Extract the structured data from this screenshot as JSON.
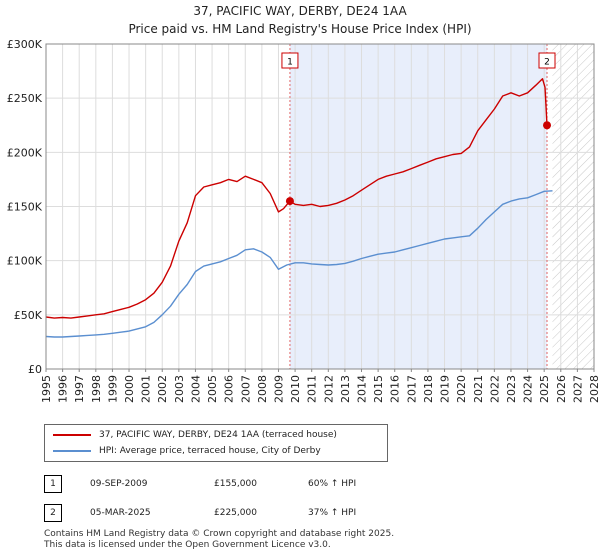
{
  "chart_data": {
    "type": "line",
    "title": "37, PACIFIC WAY, DERBY, DE24 1AA",
    "subtitle": "Price paid vs. HM Land Registry's House Price Index (HPI)",
    "xlim": [
      1995,
      2028
    ],
    "ylim": [
      0,
      300000
    ],
    "x_ticks": [
      "1995",
      "1996",
      "1997",
      "1998",
      "1999",
      "2000",
      "2001",
      "2002",
      "2003",
      "2004",
      "2005",
      "2006",
      "2007",
      "2008",
      "2009",
      "2010",
      "2011",
      "2012",
      "2013",
      "2014",
      "2015",
      "2016",
      "2017",
      "2018",
      "2019",
      "2020",
      "2021",
      "2022",
      "2023",
      "2024",
      "2025",
      "2026",
      "2027",
      "2028"
    ],
    "y_ticks": [
      {
        "value": 0,
        "label": "£0"
      },
      {
        "value": 50000,
        "label": "£50K"
      },
      {
        "value": 100000,
        "label": "£100K"
      },
      {
        "value": 150000,
        "label": "£150K"
      },
      {
        "value": 200000,
        "label": "£200K"
      },
      {
        "value": 250000,
        "label": "£250K"
      },
      {
        "value": 300000,
        "label": "£300K"
      }
    ],
    "grid": true,
    "shaded_range": [
      2009.69,
      2025.17
    ],
    "hatched_from": 2025.5,
    "colors": {
      "property": "#cc0000",
      "hpi": "#5b8fd0",
      "shade": "#e8eefb",
      "vline": "#e06666"
    },
    "series": [
      {
        "name": "37, PACIFIC WAY, DERBY, DE24 1AA (terraced house)",
        "color": "#cc0000",
        "x": [
          1995,
          1995.5,
          1996,
          1996.5,
          1997,
          1997.5,
          1998,
          1998.5,
          1999,
          1999.5,
          2000,
          2000.5,
          2001,
          2001.5,
          2002,
          2002.5,
          2003,
          2003.5,
          2004,
          2004.5,
          2005,
          2005.5,
          2006,
          2006.5,
          2007,
          2007.5,
          2008,
          2008.5,
          2009,
          2009.3,
          2009.69,
          2010,
          2010.5,
          2011,
          2011.5,
          2012,
          2012.5,
          2013,
          2013.5,
          2014,
          2014.5,
          2015,
          2015.5,
          2016,
          2016.5,
          2017,
          2017.5,
          2018,
          2018.5,
          2019,
          2019.5,
          2020,
          2020.5,
          2021,
          2021.5,
          2022,
          2022.5,
          2023,
          2023.5,
          2024,
          2024.5,
          2024.9,
          2025.05,
          2025.17
        ],
        "values": [
          48000,
          47000,
          47500,
          47000,
          48000,
          49000,
          50000,
          51000,
          53000,
          55000,
          57000,
          60000,
          64000,
          70000,
          80000,
          95000,
          118000,
          135000,
          160000,
          168000,
          170000,
          172000,
          175000,
          173000,
          178000,
          175000,
          172000,
          162000,
          145000,
          148000,
          155000,
          152000,
          151000,
          152000,
          150000,
          151000,
          153000,
          156000,
          160000,
          165000,
          170000,
          175000,
          178000,
          180000,
          182000,
          185000,
          188000,
          191000,
          194000,
          196000,
          198000,
          199000,
          205000,
          220000,
          230000,
          240000,
          252000,
          255000,
          252000,
          255000,
          262000,
          268000,
          260000,
          225000
        ]
      },
      {
        "name": "HPI: Average price, terraced house, City of Derby",
        "color": "#5b8fd0",
        "x": [
          1995,
          1995.5,
          1996,
          1996.5,
          1997,
          1997.5,
          1998,
          1998.5,
          1999,
          1999.5,
          2000,
          2000.5,
          2001,
          2001.5,
          2002,
          2002.5,
          2003,
          2003.5,
          2004,
          2004.5,
          2005,
          2005.5,
          2006,
          2006.5,
          2007,
          2007.5,
          2008,
          2008.5,
          2009,
          2009.5,
          2010,
          2010.5,
          2011,
          2011.5,
          2012,
          2012.5,
          2013,
          2013.5,
          2014,
          2014.5,
          2015,
          2015.5,
          2016,
          2016.5,
          2017,
          2017.5,
          2018,
          2018.5,
          2019,
          2019.5,
          2020,
          2020.5,
          2021,
          2021.5,
          2022,
          2022.5,
          2023,
          2023.5,
          2024,
          2024.5,
          2025,
          2025.5
        ],
        "values": [
          30000,
          29500,
          29500,
          30000,
          30500,
          31000,
          31500,
          32000,
          33000,
          34000,
          35000,
          37000,
          39000,
          43000,
          50000,
          58000,
          69000,
          78000,
          90000,
          95000,
          97000,
          99000,
          102000,
          105000,
          110000,
          111000,
          108000,
          103000,
          92000,
          96000,
          98000,
          98000,
          97000,
          96500,
          96000,
          96500,
          97500,
          99500,
          102000,
          104000,
          106000,
          107000,
          108000,
          110000,
          112000,
          114000,
          116000,
          118000,
          120000,
          121000,
          122000,
          123000,
          130000,
          138000,
          145000,
          152000,
          155000,
          157000,
          158000,
          161000,
          164000,
          164500
        ]
      }
    ],
    "sale_markers": [
      {
        "label": "1",
        "x": 2009.69,
        "value": 155000
      },
      {
        "label": "2",
        "x": 2025.17,
        "value": 225000
      }
    ]
  },
  "legend": {
    "items": [
      {
        "label": "37, PACIFIC WAY, DERBY, DE24 1AA (terraced house)",
        "color": "#cc0000"
      },
      {
        "label": "HPI: Average price, terraced house, City of Derby",
        "color": "#5b8fd0"
      }
    ]
  },
  "annotations": [
    {
      "num": "1",
      "date": "09-SEP-2009",
      "price": "£155,000",
      "hpi": "60% ↑ HPI"
    },
    {
      "num": "2",
      "date": "05-MAR-2025",
      "price": "£225,000",
      "hpi": "37% ↑ HPI"
    }
  ],
  "footer": {
    "line1": "Contains HM Land Registry data © Crown copyright and database right 2025.",
    "line2": "This data is licensed under the Open Government Licence v3.0."
  }
}
